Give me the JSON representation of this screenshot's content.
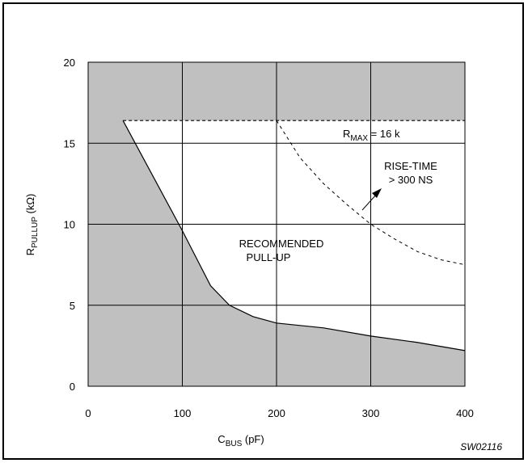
{
  "chart_data": {
    "type": "area",
    "x_axis": {
      "label_main": "C",
      "label_sub": "BUS",
      "label_unit": " (pF)",
      "range": [
        0,
        400
      ],
      "ticks": [
        "0",
        "100",
        "200",
        "300",
        "400"
      ]
    },
    "y_axis": {
      "label_main": "R",
      "label_sub": "PULLUP",
      "label_unit": " (kΩ)",
      "range": [
        0,
        20
      ],
      "ticks": [
        "0",
        "5",
        "10",
        "15",
        "20"
      ]
    },
    "grid": true,
    "colors": {
      "excluded_region": "#c0c0c0",
      "recommended_region": "#ffffff",
      "lines": "#000000"
    },
    "series": [
      {
        "role": "lower_boundary",
        "style": "solid",
        "points": [
          [
            37,
            16.4
          ],
          [
            100,
            9.6
          ],
          [
            130,
            6.2
          ],
          [
            150,
            5.0
          ],
          [
            175,
            4.3
          ],
          [
            200,
            3.9
          ],
          [
            250,
            3.6
          ],
          [
            300,
            3.1
          ],
          [
            350,
            2.7
          ],
          [
            400,
            2.2
          ]
        ]
      },
      {
        "role": "upper_boundary",
        "style": "dashed",
        "points": [
          [
            37,
            16.4
          ],
          [
            400,
            16.4
          ]
        ]
      },
      {
        "role": "rise_time_limit",
        "style": "dashed",
        "points": [
          [
            200,
            16.4
          ],
          [
            225,
            14.1
          ],
          [
            250,
            12.5
          ],
          [
            275,
            11.2
          ],
          [
            300,
            10.0
          ],
          [
            325,
            9.1
          ],
          [
            350,
            8.3
          ],
          [
            375,
            7.8
          ],
          [
            400,
            7.5
          ]
        ]
      }
    ],
    "annotations": {
      "rmax": {
        "main": "R",
        "sub": "MAX",
        "rest": " = 16 k"
      },
      "rise_line1": "RISE-TIME",
      "rise_line2": "> 300 NS",
      "rec_line1": "RECOMMENDED",
      "rec_line2": "PULL-UP"
    },
    "figure_code": "SW02116"
  }
}
